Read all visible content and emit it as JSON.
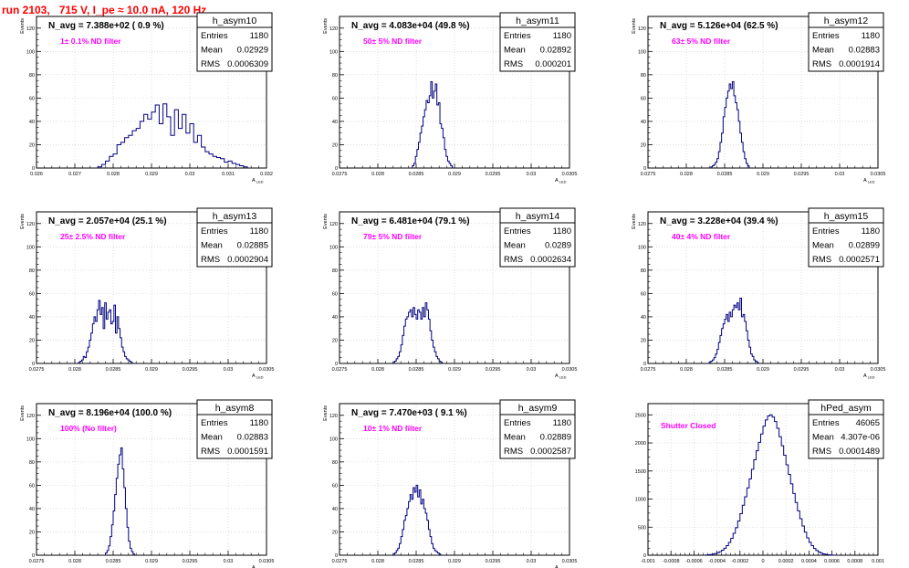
{
  "run_title": "run 2103,   715 V, I_pe ≈ 10.0 nA, 120 Hz",
  "colors": {
    "hist_line": "#000080",
    "grid": "#c8c8c8",
    "annotation": "#ff00ff",
    "title": "#ff0000",
    "frame": "#000000"
  },
  "chart_data": [
    {
      "type": "histogram",
      "name": "h_asym10",
      "navg": "N_avg = 7.388e+02 ( 0.9 %)",
      "filter": "1± 0.1% ND filter",
      "stats": {
        "entries": "1180",
        "mean": "0.02929",
        "rms": "0.0006309"
      },
      "xlabel": "A_LED",
      "ylabel": "Events",
      "xlim": [
        0.026,
        0.032
      ],
      "ylim": [
        0,
        130
      ],
      "xticks": [
        "0.026",
        "0.027",
        "0.028",
        "0.029",
        "0.03",
        "0.031",
        "0.032"
      ],
      "yticks": [
        0,
        20,
        40,
        60,
        80,
        100,
        120
      ],
      "x_start": 0.0276,
      "bin_width": 0.0001,
      "counts": [
        1,
        3,
        6,
        10,
        12,
        20,
        22,
        26,
        28,
        32,
        34,
        40,
        46,
        42,
        48,
        54,
        38,
        55,
        44,
        28,
        50,
        34,
        46,
        30,
        38,
        22,
        28,
        18,
        14,
        12,
        10,
        9,
        8,
        5,
        6,
        4,
        3,
        2,
        1
      ]
    },
    {
      "type": "histogram",
      "name": "h_asym11",
      "navg": "N_avg = 4.083e+04 (49.8 %)",
      "filter": "50± 5% ND filter",
      "stats": {
        "entries": "1180",
        "mean": "0.02892",
        "rms": "0.000201"
      },
      "xlabel": "A_LED",
      "ylabel": "Events",
      "xlim": [
        0.0275,
        0.0305
      ],
      "ylim": [
        0,
        130
      ],
      "xticks": [
        "0.0275",
        "0.028",
        "0.0285",
        "0.029",
        "0.0295",
        "0.03",
        "0.0305"
      ],
      "yticks": [
        0,
        20,
        40,
        60,
        80,
        100,
        120
      ],
      "x_start": 0.02845,
      "bin_width": 2e-05,
      "counts": [
        2,
        4,
        10,
        16,
        22,
        30,
        36,
        44,
        50,
        58,
        56,
        62,
        74,
        60,
        66,
        72,
        54,
        56,
        38,
        34,
        26,
        16,
        10,
        6,
        4,
        2
      ]
    },
    {
      "type": "histogram",
      "name": "h_asym12",
      "navg": "N_avg = 5.126e+04 (62.5 %)",
      "filter": "63± 5% ND filter",
      "stats": {
        "entries": "1180",
        "mean": "0.02883",
        "rms": "0.0001914"
      },
      "xlabel": "A_LED",
      "ylabel": "Events",
      "xlim": [
        0.0275,
        0.0305
      ],
      "ylim": [
        0,
        130
      ],
      "xticks": [
        "0.0275",
        "0.028",
        "0.0285",
        "0.029",
        "0.0295",
        "0.03",
        "0.0305"
      ],
      "yticks": [
        0,
        20,
        40,
        60,
        80,
        100,
        120
      ],
      "x_start": 0.02832,
      "bin_width": 2e-05,
      "counts": [
        1,
        2,
        3,
        5,
        8,
        14,
        22,
        30,
        44,
        52,
        60,
        66,
        72,
        68,
        74,
        62,
        56,
        50,
        40,
        30,
        22,
        14,
        8,
        4,
        2
      ]
    },
    {
      "type": "histogram",
      "name": "h_asym13",
      "navg": "N_avg = 2.057e+04 (25.1 %)",
      "filter": "25± 2.5% ND filter",
      "stats": {
        "entries": "1180",
        "mean": "0.02885",
        "rms": "0.0002904"
      },
      "xlabel": "A_LED",
      "ylabel": "Events",
      "xlim": [
        0.0275,
        0.0305
      ],
      "ylim": [
        0,
        130
      ],
      "xticks": [
        "0.0275",
        "0.028",
        "0.0285",
        "0.029",
        "0.0295",
        "0.03",
        "0.0305"
      ],
      "yticks": [
        0,
        20,
        40,
        60,
        80,
        100,
        120
      ],
      "x_start": 0.02805,
      "bin_width": 2e-05,
      "counts": [
        1,
        2,
        3,
        6,
        5,
        10,
        14,
        20,
        26,
        34,
        40,
        36,
        46,
        54,
        42,
        48,
        30,
        52,
        38,
        44,
        46,
        34,
        36,
        50,
        26,
        40,
        30,
        22,
        14,
        10,
        6,
        4,
        3,
        2,
        1
      ]
    },
    {
      "type": "histogram",
      "name": "h_asym14",
      "navg": "N_avg = 6.481e+04 (79.1 %)",
      "filter": "79± 5% ND filter",
      "stats": {
        "entries": "1180",
        "mean": "0.0289",
        "rms": "0.0002634"
      },
      "xlabel": "A_LED",
      "ylabel": "Events",
      "xlim": [
        0.0275,
        0.0305
      ],
      "ylim": [
        0,
        130
      ],
      "xticks": [
        "0.0275",
        "0.028",
        "0.0285",
        "0.029",
        "0.0295",
        "0.03",
        "0.0305"
      ],
      "yticks": [
        0,
        20,
        40,
        60,
        80,
        100,
        120
      ],
      "x_start": 0.0282,
      "bin_width": 2e-05,
      "counts": [
        1,
        2,
        4,
        6,
        10,
        16,
        24,
        32,
        38,
        40,
        44,
        46,
        40,
        48,
        42,
        38,
        46,
        44,
        38,
        48,
        40,
        52,
        46,
        38,
        28,
        20,
        14,
        10,
        6,
        4,
        2,
        1
      ]
    },
    {
      "type": "histogram",
      "name": "h_asym15",
      "navg": "N_avg = 3.228e+04 (39.4 %)",
      "filter": "40± 4% ND filter",
      "stats": {
        "entries": "1180",
        "mean": "0.02899",
        "rms": "0.0002571"
      },
      "xlabel": "A_LED",
      "ylabel": "Events",
      "xlim": [
        0.0275,
        0.0305
      ],
      "ylim": [
        0,
        130
      ],
      "xticks": [
        "0.0275",
        "0.028",
        "0.0285",
        "0.029",
        "0.0295",
        "0.03",
        "0.0305"
      ],
      "yticks": [
        0,
        20,
        40,
        60,
        80,
        100,
        120
      ],
      "x_start": 0.0283,
      "bin_width": 2e-05,
      "counts": [
        1,
        2,
        3,
        5,
        8,
        12,
        18,
        24,
        30,
        34,
        38,
        42,
        36,
        44,
        40,
        46,
        50,
        48,
        52,
        46,
        56,
        40,
        42,
        36,
        28,
        20,
        14,
        8,
        6,
        3,
        2,
        1
      ]
    },
    {
      "type": "histogram",
      "name": "h_asym8",
      "navg": "N_avg = 8.196e+04 (100.0 %)",
      "filter": "100% (No filter)",
      "stats": {
        "entries": "1180",
        "mean": "0.02883",
        "rms": "0.0001591"
      },
      "xlabel": "A_LED",
      "ylabel": "Events",
      "xlim": [
        0.0275,
        0.0305
      ],
      "ylim": [
        0,
        130
      ],
      "xticks": [
        "0.0275",
        "0.028",
        "0.0285",
        "0.029",
        "0.0295",
        "0.03",
        "0.0305"
      ],
      "yticks": [
        0,
        20,
        40,
        60,
        80,
        100,
        120
      ],
      "x_start": 0.0284,
      "bin_width": 2e-05,
      "counts": [
        2,
        4,
        8,
        16,
        26,
        38,
        52,
        66,
        78,
        86,
        92,
        74,
        58,
        40,
        24,
        12,
        6,
        3,
        1
      ]
    },
    {
      "type": "histogram",
      "name": "h_asym9",
      "navg": "N_avg = 7.470e+03 ( 9.1 %)",
      "filter": "10± 1% ND filter",
      "stats": {
        "entries": "1180",
        "mean": "0.02889",
        "rms": "0.0002587"
      },
      "xlabel": "A_LED",
      "ylabel": "Events",
      "xlim": [
        0.0275,
        0.0305
      ],
      "ylim": [
        0,
        130
      ],
      "xticks": [
        "0.0275",
        "0.028",
        "0.0285",
        "0.029",
        "0.0295",
        "0.03",
        "0.0305"
      ],
      "yticks": [
        0,
        20,
        40,
        60,
        80,
        100,
        120
      ],
      "x_start": 0.0282,
      "bin_width": 2e-05,
      "counts": [
        1,
        2,
        4,
        6,
        10,
        16,
        22,
        30,
        34,
        40,
        46,
        52,
        48,
        58,
        54,
        60,
        50,
        56,
        44,
        48,
        40,
        36,
        30,
        22,
        16,
        10,
        6,
        4,
        3,
        2,
        1
      ]
    },
    {
      "type": "histogram",
      "name": "hPed_asym",
      "navg": "",
      "filter": "Shutter Closed",
      "stats": {
        "entries": "46065",
        "mean": "4.307e-06",
        "rms": "0.0001489"
      },
      "xlabel": "",
      "ylabel": "",
      "xlim": [
        -0.001,
        0.001
      ],
      "ylim": [
        0,
        2700
      ],
      "xticks": [
        "-0.001",
        "-0.0008",
        "-0.0006",
        "-0.0004",
        "-0.0002",
        "0",
        "0.0002",
        "0.0004",
        "0.0006",
        "0.0008",
        "0.001"
      ],
      "yticks": [
        0,
        500,
        1000,
        1500,
        2000,
        2500
      ],
      "x_start": -0.0005,
      "bin_width": 2e-05,
      "counts": [
        4,
        8,
        12,
        20,
        30,
        44,
        64,
        90,
        124,
        170,
        228,
        300,
        390,
        490,
        610,
        740,
        890,
        1040,
        1200,
        1360,
        1530,
        1700,
        1860,
        2010,
        2160,
        2300,
        2410,
        2480,
        2500,
        2460,
        2380,
        2260,
        2110,
        1950,
        1780,
        1610,
        1440,
        1270,
        1100,
        940,
        790,
        650,
        520,
        410,
        310,
        230,
        170,
        120,
        84,
        56,
        36,
        22,
        14,
        8,
        4,
        2
      ]
    }
  ]
}
